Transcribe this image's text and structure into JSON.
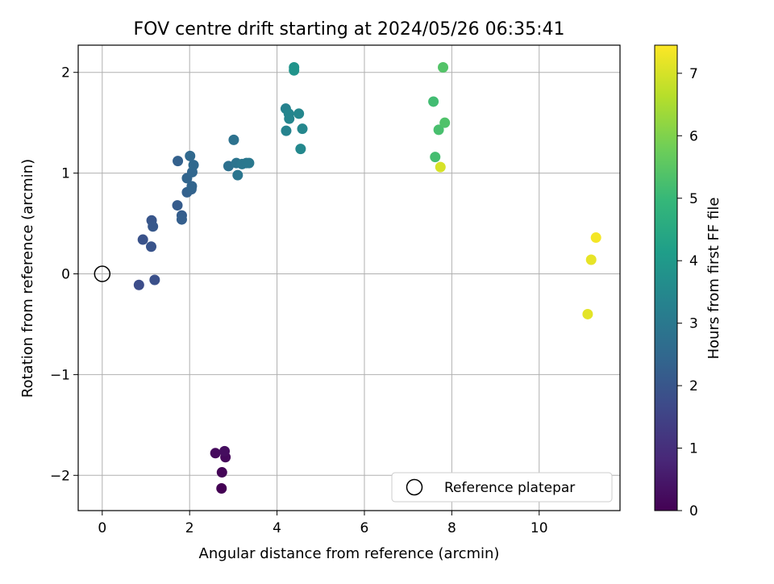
{
  "chart_data": {
    "type": "scatter",
    "title": "FOV centre drift starting at 2024/05/26 06:35:41",
    "xlabel": "Angular distance from reference (arcmin)",
    "ylabel": "Rotation from reference (arcmin)",
    "xlim": [
      -0.55,
      11.85
    ],
    "ylim": [
      -2.35,
      2.27
    ],
    "xticks": [
      0,
      2,
      4,
      6,
      8,
      10
    ],
    "yticks": [
      -2,
      -1,
      0,
      1,
      2
    ],
    "grid": true,
    "legend": {
      "position": "lower-right",
      "entries": [
        "Reference platepar"
      ]
    },
    "reference_point": {
      "x": 0,
      "y": 0,
      "label": "Reference platepar"
    },
    "colorbar": {
      "label": "Hours from first FF file",
      "range": [
        0,
        7.45
      ],
      "ticks": [
        0,
        1,
        2,
        3,
        4,
        5,
        6,
        7
      ],
      "colormap": [
        "#440154",
        "#482878",
        "#3e4989",
        "#31688e",
        "#26828e",
        "#1f9e89",
        "#35b779",
        "#6ece58",
        "#b5de2b",
        "#fde725"
      ]
    },
    "points": [
      {
        "x": 2.73,
        "y": -2.13,
        "c": 0.0
      },
      {
        "x": 2.74,
        "y": -1.97,
        "c": 0.08
      },
      {
        "x": 2.82,
        "y": -1.82,
        "c": 0.15
      },
      {
        "x": 2.59,
        "y": -1.78,
        "c": 0.2
      },
      {
        "x": 2.8,
        "y": -1.76,
        "c": 0.25
      },
      {
        "x": 0.84,
        "y": -0.11,
        "c": 1.75
      },
      {
        "x": 1.2,
        "y": -0.06,
        "c": 1.85
      },
      {
        "x": 0.93,
        "y": 0.34,
        "c": 1.9
      },
      {
        "x": 1.12,
        "y": 0.27,
        "c": 1.95
      },
      {
        "x": 1.13,
        "y": 0.53,
        "c": 2.0
      },
      {
        "x": 1.16,
        "y": 0.47,
        "c": 2.05
      },
      {
        "x": 1.72,
        "y": 0.68,
        "c": 2.15
      },
      {
        "x": 1.82,
        "y": 0.58,
        "c": 2.2
      },
      {
        "x": 1.82,
        "y": 0.54,
        "c": 2.25
      },
      {
        "x": 1.94,
        "y": 0.81,
        "c": 2.3
      },
      {
        "x": 2.04,
        "y": 0.84,
        "c": 2.35
      },
      {
        "x": 2.05,
        "y": 0.87,
        "c": 2.4
      },
      {
        "x": 1.94,
        "y": 0.95,
        "c": 2.4
      },
      {
        "x": 2.06,
        "y": 1.01,
        "c": 2.45
      },
      {
        "x": 2.09,
        "y": 1.08,
        "c": 2.5
      },
      {
        "x": 2.01,
        "y": 1.17,
        "c": 2.5
      },
      {
        "x": 1.73,
        "y": 1.12,
        "c": 2.3
      },
      {
        "x": 2.89,
        "y": 1.07,
        "c": 2.75
      },
      {
        "x": 3.01,
        "y": 1.33,
        "c": 2.8
      },
      {
        "x": 3.07,
        "y": 1.1,
        "c": 2.85
      },
      {
        "x": 3.1,
        "y": 0.98,
        "c": 2.9
      },
      {
        "x": 3.2,
        "y": 1.09,
        "c": 2.95
      },
      {
        "x": 3.3,
        "y": 1.1,
        "c": 2.95
      },
      {
        "x": 3.36,
        "y": 1.1,
        "c": 3.0
      },
      {
        "x": 4.2,
        "y": 1.64,
        "c": 3.3
      },
      {
        "x": 4.21,
        "y": 1.42,
        "c": 3.35
      },
      {
        "x": 4.27,
        "y": 1.59,
        "c": 3.4
      },
      {
        "x": 4.28,
        "y": 1.54,
        "c": 3.4
      },
      {
        "x": 4.5,
        "y": 1.59,
        "c": 3.45
      },
      {
        "x": 4.58,
        "y": 1.44,
        "c": 3.45
      },
      {
        "x": 4.54,
        "y": 1.24,
        "c": 3.5
      },
      {
        "x": 4.39,
        "y": 2.05,
        "c": 3.85
      },
      {
        "x": 4.39,
        "y": 2.02,
        "c": 3.85
      },
      {
        "x": 7.58,
        "y": 1.71,
        "c": 5.15
      },
      {
        "x": 7.62,
        "y": 1.16,
        "c": 5.2
      },
      {
        "x": 7.7,
        "y": 1.43,
        "c": 5.25
      },
      {
        "x": 7.84,
        "y": 1.5,
        "c": 5.35
      },
      {
        "x": 7.8,
        "y": 2.05,
        "c": 5.4
      },
      {
        "x": 7.74,
        "y": 1.06,
        "c": 7.0
      },
      {
        "x": 11.11,
        "y": -0.4,
        "c": 7.15
      },
      {
        "x": 11.19,
        "y": 0.14,
        "c": 7.2
      },
      {
        "x": 11.3,
        "y": 0.36,
        "c": 7.35
      }
    ]
  }
}
